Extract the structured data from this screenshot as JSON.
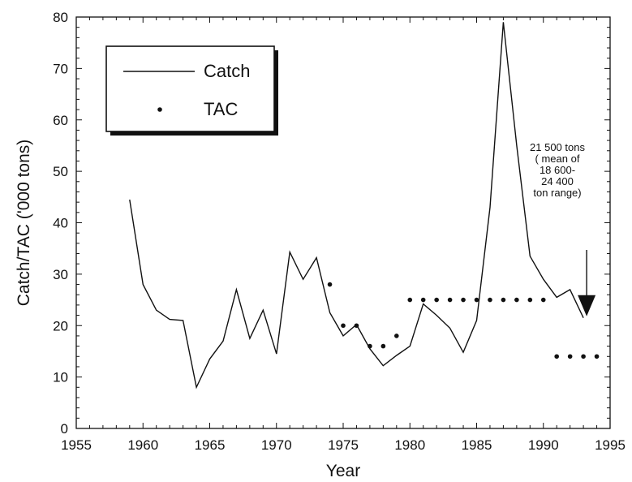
{
  "chart_data": {
    "type": "line",
    "title": "",
    "xlabel": "Year",
    "ylabel": "Catch/TAC ('000 tons)",
    "xlim": [
      1955,
      1995
    ],
    "ylim": [
      0,
      80
    ],
    "xticks": [
      1955,
      1960,
      1965,
      1970,
      1975,
      1980,
      1985,
      1990,
      1995
    ],
    "yticks": [
      0,
      10,
      20,
      30,
      40,
      50,
      60,
      70,
      80
    ],
    "xtick_labels": [
      "1955",
      "1960",
      "1965",
      "1970",
      "1975",
      "1980",
      "1985",
      "1990",
      "1995"
    ],
    "ytick_labels": [
      "0",
      "10",
      "20",
      "30",
      "40",
      "50",
      "60",
      "70",
      "80"
    ],
    "legend": {
      "placement": "top-left",
      "entries": [
        "Catch",
        "TAC"
      ]
    },
    "grid": false,
    "series": [
      {
        "name": "Catch",
        "style": "line",
        "x": [
          1959,
          1960,
          1961,
          1962,
          1963,
          1964,
          1965,
          1966,
          1967,
          1968,
          1969,
          1970,
          1971,
          1972,
          1973,
          1974,
          1975,
          1976,
          1977,
          1978,
          1979,
          1980,
          1981,
          1982,
          1983,
          1984,
          1985,
          1986,
          1987,
          1988,
          1989,
          1990,
          1991,
          1992,
          1993
        ],
        "values": [
          44.5,
          28,
          23,
          21.2,
          21,
          8,
          13.5,
          17,
          27,
          17.5,
          23,
          14.5,
          34.3,
          29,
          33.2,
          22.5,
          18,
          20.2,
          15.5,
          12.2,
          14.2,
          16,
          24.2,
          22,
          19.5,
          14.8,
          21,
          43,
          79,
          55,
          33.5,
          29,
          25.5,
          27,
          21.5
        ]
      },
      {
        "name": "TAC",
        "style": "points",
        "x": [
          1974,
          1975,
          1976,
          1977,
          1978,
          1979,
          1980,
          1981,
          1982,
          1983,
          1984,
          1985,
          1986,
          1987,
          1988,
          1989,
          1990,
          1991,
          1992,
          1993,
          1994
        ],
        "values": [
          28,
          20,
          20,
          16,
          16,
          18,
          25,
          25,
          25,
          25,
          25,
          25,
          25,
          25,
          25,
          25,
          25,
          14,
          14,
          14,
          14
        ]
      }
    ],
    "annotations": [
      {
        "lines": [
          "21 500 tons",
          "( mean of",
          "18 600-",
          "24 400",
          "ton range)"
        ],
        "arrow_to": [
          1993,
          21.5
        ]
      }
    ]
  }
}
